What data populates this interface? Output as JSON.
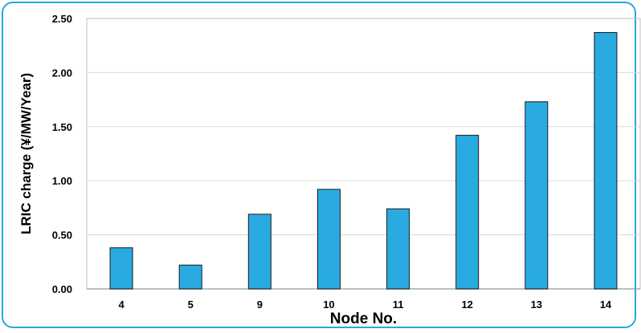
{
  "chart_data": {
    "type": "bar",
    "categories": [
      "4",
      "5",
      "9",
      "10",
      "11",
      "12",
      "13",
      "14"
    ],
    "values": [
      0.38,
      0.22,
      0.69,
      0.92,
      0.74,
      1.42,
      1.73,
      2.37
    ],
    "xlabel": "Node No.",
    "ylabel": "LRIC charge (¥/MW/Year)",
    "ylim": [
      0,
      2.5
    ],
    "yticks": [
      "0.00",
      "0.50",
      "1.00",
      "1.50",
      "2.00",
      "2.50"
    ],
    "grid": true,
    "legend": "none",
    "bar_color": "#29abe2",
    "frame_color": "#2aa6e0"
  }
}
